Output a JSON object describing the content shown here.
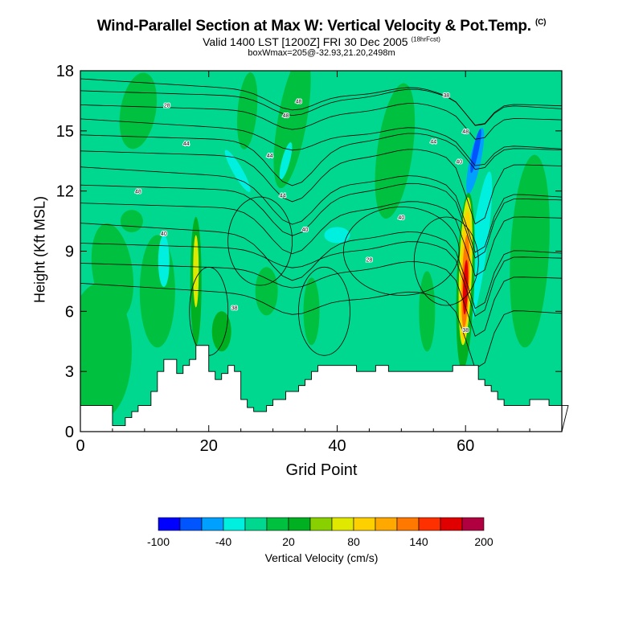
{
  "title": "Wind-Parallel Section at Max W: Vertical Velocity & Pot.Temp.",
  "title_mark": "(C)",
  "subtitle": "Valid 1400 LST [1200Z] FRI 30 Dec 2005",
  "subtitle_mark": "(18hrFcst)",
  "subtitle2": "boxWmax=205@-32.93,21.20,2498m",
  "chart_data": {
    "type": "heatmap",
    "xlabel": "Grid Point",
    "ylabel": "Height (Kft MSL)",
    "xlim": [
      0,
      75
    ],
    "ylim": [
      0,
      18
    ],
    "xticks": [
      "0",
      "20",
      "40",
      "60"
    ],
    "yticks": [
      "0",
      "3",
      "6",
      "9",
      "12",
      "15",
      "18"
    ],
    "colorbar": {
      "label": "Vertical Velocity (cm/s)",
      "tick_labels": [
        "-100",
        "-40",
        "20",
        "80",
        "140",
        "200"
      ],
      "colors": [
        "#0000ff",
        "#0055ff",
        "#00a0ff",
        "#00f0e0",
        "#00d890",
        "#00c040",
        "#00b020",
        "#88d000",
        "#e0e800",
        "#ffd000",
        "#ffa800",
        "#ff7800",
        "#ff3000",
        "#e00000",
        "#b00040"
      ]
    },
    "contour_labels": [
      "28",
      "38",
      "40",
      "44",
      "46",
      "48"
    ],
    "terrain_kft": [
      1.3,
      1.3,
      1.3,
      1.3,
      1.3,
      0.3,
      0.3,
      0.7,
      1.0,
      1.3,
      1.3,
      2.0,
      3.0,
      3.6,
      3.6,
      2.9,
      3.3,
      3.6,
      4.3,
      4.3,
      3.0,
      2.6,
      2.9,
      3.3,
      3.0,
      1.6,
      1.2,
      1.0,
      1.0,
      1.3,
      1.6,
      1.6,
      2.0,
      2.0,
      2.3,
      2.6,
      3.0,
      3.3,
      3.3,
      3.3,
      3.3,
      3.3,
      3.3,
      3.0,
      3.0,
      3.0,
      3.3,
      3.3,
      3.0,
      3.0,
      3.0,
      3.0,
      3.0,
      3.0,
      3.0,
      3.0,
      3.0,
      3.0,
      3.3,
      3.3,
      3.3,
      3.3,
      2.6,
      2.3,
      2.0,
      1.6,
      1.3,
      1.3,
      1.3,
      1.3,
      1.6,
      1.6,
      1.6,
      1.3,
      1.3,
      1.3
    ]
  }
}
